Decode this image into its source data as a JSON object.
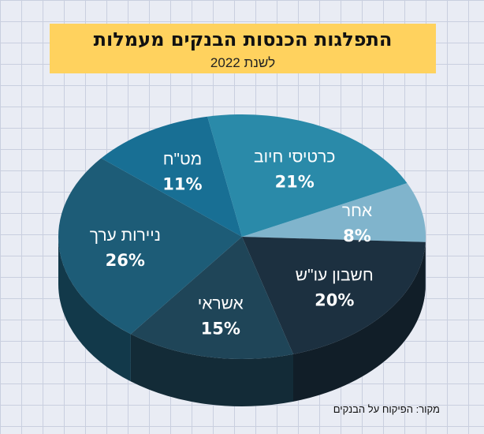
{
  "header": {
    "title": "התפלגות הכנסות הבנקים מעמלות",
    "subtitle": "לשנת 2022"
  },
  "source": "מקור: הפיקוח על הבנקים",
  "chart_data": {
    "type": "pie",
    "title": "התפלגות הכנסות הבנקים מעמלות",
    "subtitle": "לשנת 2022",
    "slices": [
      {
        "label": "אחר",
        "value": 8,
        "value_label": "8%",
        "color": "#80b4cc"
      },
      {
        "label": "חשבון עו\"ש",
        "value": 20,
        "value_label": "20%",
        "color": "#1c3040"
      },
      {
        "label": "אשראי",
        "value": 15,
        "value_label": "15%",
        "color": "#1f4558"
      },
      {
        "label": "ניירות ערך",
        "value": 26,
        "value_label": "26%",
        "color": "#1d5c77"
      },
      {
        "label": "מט\"ח",
        "value": 11,
        "value_label": "11%",
        "color": "#186f94"
      },
      {
        "label": "כרטיסי חיוב",
        "value": 21,
        "value_label": "21%",
        "color": "#2a8aa9"
      }
    ],
    "start_angle_deg": 64,
    "direction": "clockwise"
  }
}
